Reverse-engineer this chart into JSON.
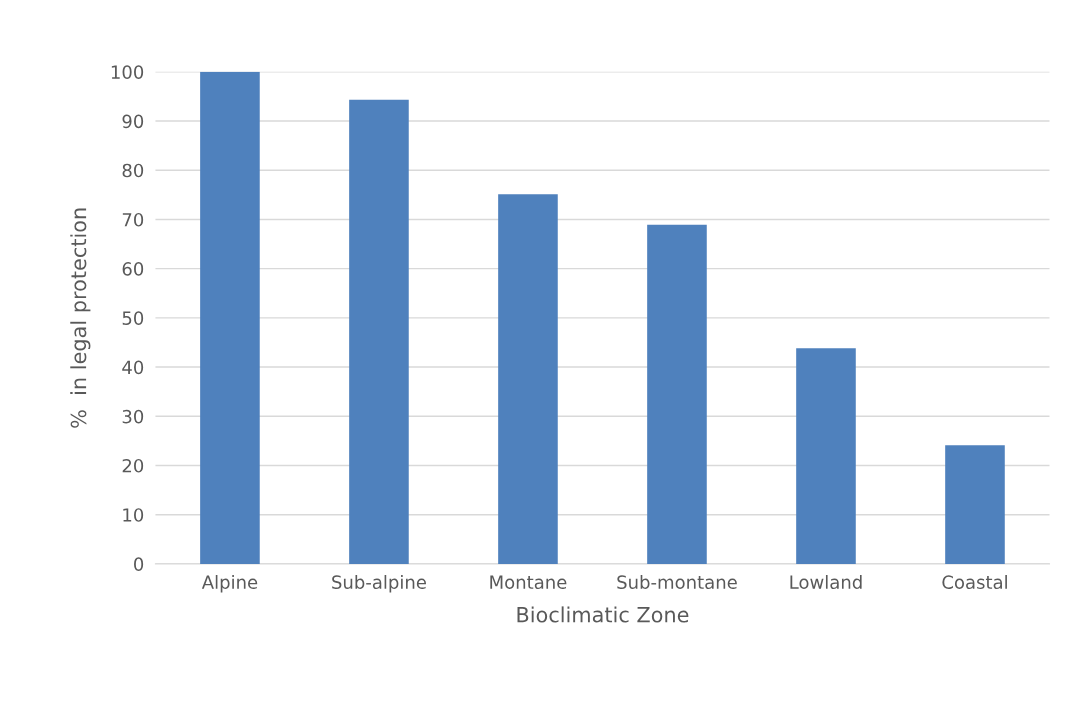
{
  "chart_data": {
    "type": "bar",
    "xlabel": "Bioclimatic Zone",
    "ylabel": "%  in legal protection",
    "categories": [
      "Alpine",
      "Sub-alpine",
      "Montane",
      "Sub-montane",
      "Lowland",
      "Coastal"
    ],
    "values": [
      100,
      94.3,
      75.1,
      68.9,
      43.8,
      24.1
    ],
    "color": "#4f81bd",
    "ylim": [
      0,
      100
    ],
    "yticks": [
      0,
      10,
      20,
      30,
      40,
      50,
      60,
      70,
      80,
      90,
      100
    ],
    "grid": "y",
    "legend": false
  }
}
